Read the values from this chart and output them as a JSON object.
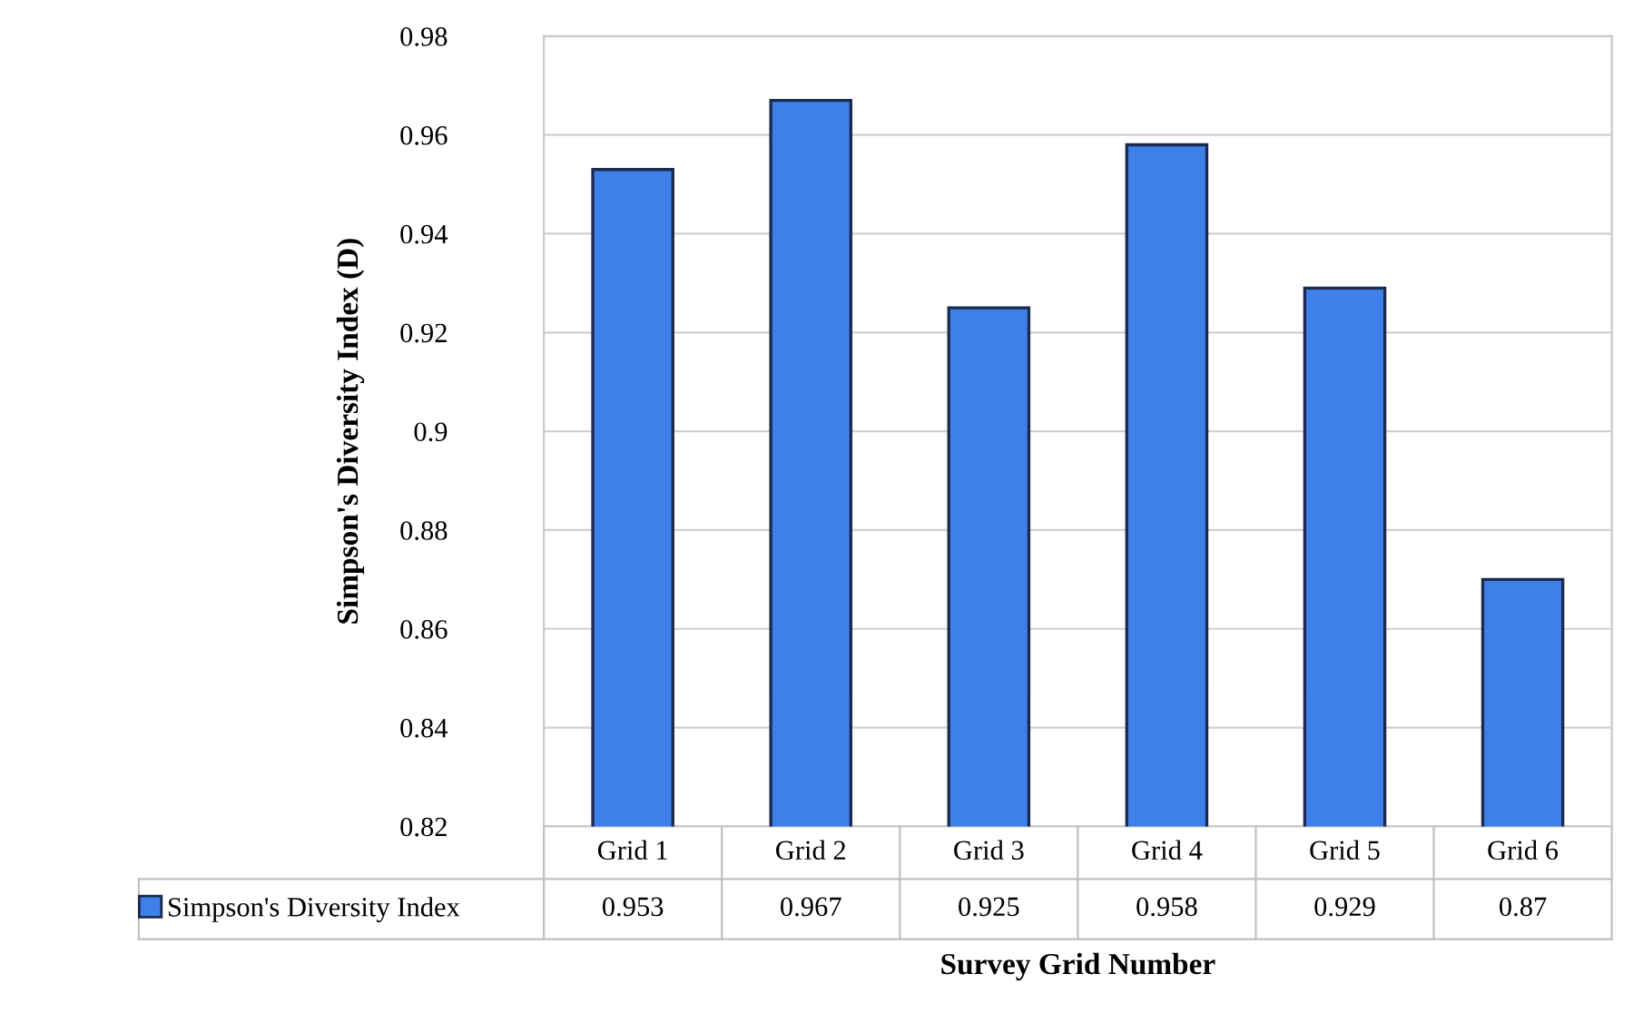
{
  "chart_data": {
    "type": "bar",
    "xlabel": "Survey Grid Number",
    "ylabel": "Simpson's Diversity Index (D)",
    "categories": [
      "Grid 1",
      "Grid 2",
      "Grid 3",
      "Grid 4",
      "Grid 5",
      "Grid 6"
    ],
    "series": [
      {
        "name": "Simpson's Diversity Index",
        "color": "#3f7fe8",
        "values": [
          0.953,
          0.967,
          0.925,
          0.958,
          0.929,
          0.87
        ]
      }
    ],
    "value_labels": [
      "0.953",
      "0.967",
      "0.925",
      "0.958",
      "0.929",
      "0.87"
    ],
    "ylim": [
      0.82,
      0.98
    ],
    "yticks": [
      0.82,
      0.84,
      0.86,
      0.88,
      {
        "value": 0.9,
        "label": "0.9"
      },
      0.92,
      0.94,
      0.96,
      0.98
    ],
    "grid": "y",
    "legend": "bottom left"
  }
}
